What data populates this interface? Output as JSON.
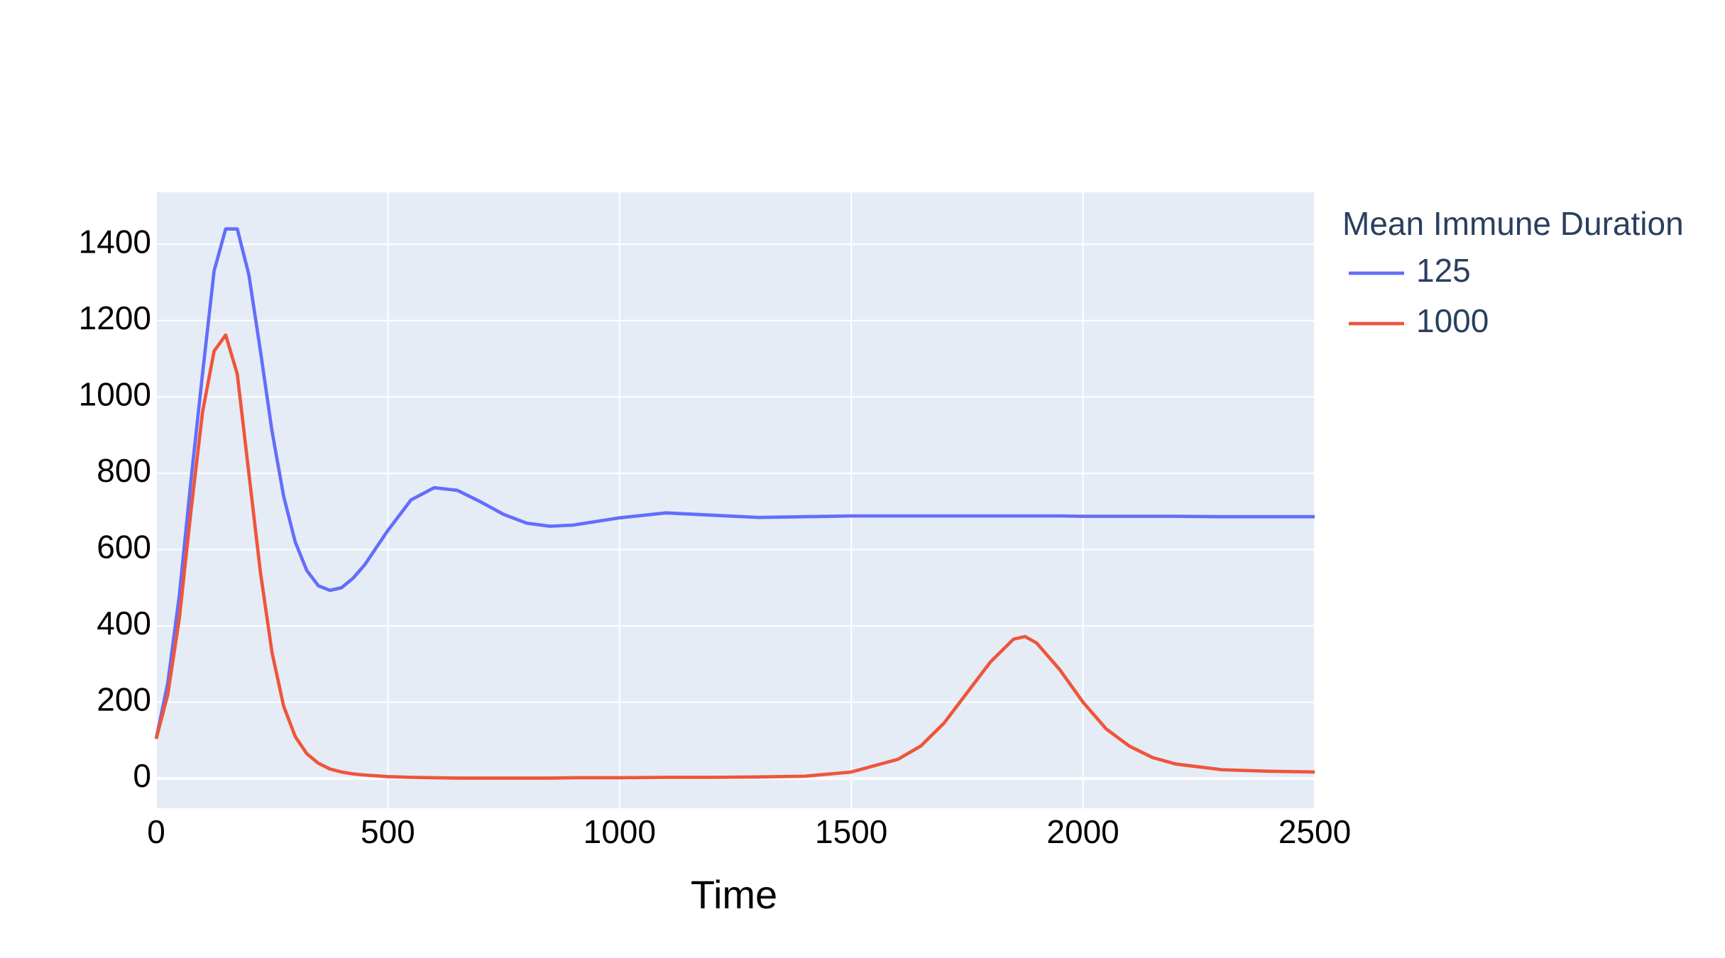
{
  "chart_data": {
    "type": "line",
    "xlabel": "Time",
    "legend_title": "Mean Immune Duration",
    "x": [
      0,
      25,
      50,
      75,
      100,
      125,
      150,
      175,
      200,
      225,
      250,
      275,
      300,
      325,
      350,
      375,
      400,
      425,
      450,
      500,
      550,
      600,
      650,
      700,
      750,
      800,
      850,
      900,
      1000,
      1100,
      1200,
      1300,
      1400,
      1500,
      1600,
      1650,
      1700,
      1750,
      1800,
      1850,
      1875,
      1900,
      1950,
      2000,
      2050,
      2100,
      2150,
      2200,
      2300,
      2400,
      2500
    ],
    "series": [
      {
        "name": "125",
        "color": "#636efa",
        "values": [
          104,
          250,
          480,
          780,
          1060,
          1330,
          1440,
          1440,
          1320,
          1120,
          910,
          740,
          620,
          545,
          505,
          493,
          500,
          525,
          560,
          650,
          730,
          762,
          755,
          725,
          692,
          669,
          661,
          664,
          683,
          696,
          690,
          684,
          686,
          688,
          688,
          688,
          688,
          688,
          688,
          688,
          688,
          688,
          688,
          687,
          687,
          687,
          687,
          687,
          686,
          686,
          686
        ]
      },
      {
        "name": "1000",
        "color": "#ef553b",
        "values": [
          104,
          220,
          420,
          700,
          960,
          1120,
          1162,
          1060,
          800,
          540,
          330,
          190,
          110,
          65,
          40,
          25,
          17,
          12,
          9,
          5,
          3,
          2,
          1,
          1,
          1,
          1,
          1,
          2,
          2,
          3,
          3,
          4,
          6,
          17,
          50,
          85,
          145,
          225,
          305,
          365,
          372,
          355,
          285,
          200,
          130,
          85,
          55,
          38,
          23,
          19,
          17
        ]
      }
    ],
    "xlim": [
      0,
      2500
    ],
    "xticks": [
      0,
      500,
      1000,
      1500,
      2000,
      2500
    ],
    "ylim": [
      -78,
      1536
    ],
    "yticks": [
      0,
      200,
      400,
      600,
      800,
      1000,
      1200,
      1400
    ],
    "grid": true,
    "legend": "right"
  }
}
